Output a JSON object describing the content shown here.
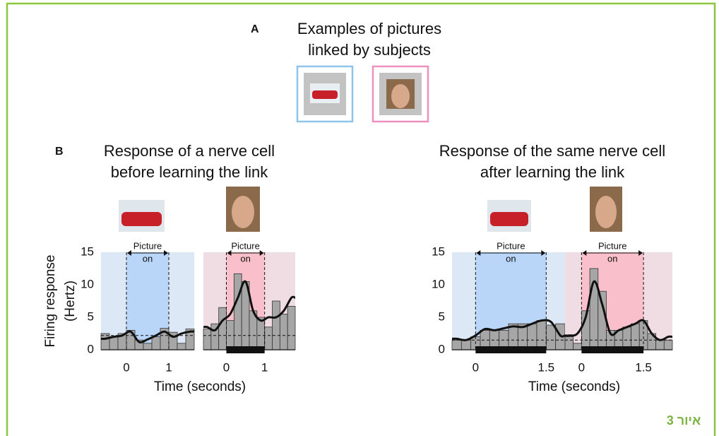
{
  "figure": {
    "label_a": "A",
    "title_a": [
      "Examples of pictures",
      "linked by subjects"
    ],
    "label_b": "B",
    "panels": [
      {
        "title": [
          "Response of a nerve cell",
          "before learning the link"
        ]
      },
      {
        "title": [
          "Response of the same nerve cell",
          "after learning the link"
        ]
      }
    ],
    "caption": "איור 3"
  },
  "chart_data": [
    {
      "type": "histogram",
      "bins": [
        -0.6,
        -0.4,
        -0.2,
        0,
        0.2,
        0.4,
        0.6,
        0.8,
        1,
        1.2,
        1.4,
        1.6
      ],
      "values": [
        2.5,
        2,
        2.5,
        3,
        1.5,
        1,
        2,
        3.3,
        2.7,
        1,
        3.2
      ],
      "curve": [
        1.7,
        2,
        2.2,
        2.8,
        1.2,
        1.6,
        2.2,
        2.8,
        2,
        2.5,
        2.8
      ],
      "baseline": 2.2,
      "stimulus": [
        0,
        1
      ],
      "response_bar": false,
      "xlim": [
        -0.6,
        1.6
      ],
      "ylim": [
        0,
        15
      ],
      "xticks": [
        0,
        1
      ],
      "yticks": [
        0,
        5,
        10,
        15
      ],
      "color": "#a6a6a6",
      "shade_color": "#dce8f6",
      "stim_color": "#b9d5f7",
      "annotation": [
        "Picture",
        "on"
      ],
      "ylabel": [
        "Firing response",
        "(Hertz)"
      ],
      "xlabel": "Time (seconds)"
    },
    {
      "type": "histogram",
      "bins": [
        -0.6,
        -0.4,
        -0.2,
        0,
        0.2,
        0.4,
        0.6,
        0.8,
        1,
        1.2,
        1.4,
        1.6,
        1.8
      ],
      "values": [
        3.2,
        4,
        6.5,
        4.5,
        11.7,
        10.5,
        6,
        5,
        3.5,
        7.5,
        5.5,
        6.7
      ],
      "curve": [
        3.5,
        3,
        4.5,
        5.5,
        8,
        10.5,
        6,
        4.5,
        5,
        5,
        6,
        8
      ],
      "baseline": 2.2,
      "stimulus": [
        0,
        1
      ],
      "response_bar": true,
      "xlim": [
        -0.6,
        1.8
      ],
      "ylim": [
        0,
        15
      ],
      "xticks": [
        0,
        1
      ],
      "color": "#a6a6a6",
      "shade_color": "#f0dde3",
      "stim_color": "#f9c0cc",
      "annotation": [
        "Picture",
        "on"
      ]
    },
    {
      "type": "histogram",
      "bins": [
        -0.5,
        -0.3,
        -0.1,
        0.1,
        0.3,
        0.5,
        0.7,
        0.9,
        1.1,
        1.3,
        1.5,
        1.7,
        1.9
      ],
      "values": [
        1.5,
        1.5,
        2,
        3,
        3,
        3,
        4,
        4,
        4,
        4.5,
        3.8,
        4
      ],
      "curve": [
        1.7,
        1.5,
        2.2,
        3.2,
        3,
        3.3,
        3.6,
        3.5,
        4,
        4.5,
        4.3,
        2.2
      ],
      "baseline": 1.5,
      "stimulus": [
        0,
        1.5
      ],
      "response_bar": true,
      "xlim": [
        -0.5,
        1.9
      ],
      "ylim": [
        0,
        15
      ],
      "xticks": [
        0,
        1.5
      ],
      "yticks": [
        0,
        5,
        10,
        15
      ],
      "color": "#a6a6a6",
      "shade_color": "#dce8f6",
      "stim_color": "#b9d5f7",
      "annotation": [
        "Picture",
        "on"
      ],
      "xlabel": "Time (seconds)"
    },
    {
      "type": "histogram",
      "bins": [
        -0.4,
        -0.2,
        0,
        0.2,
        0.4,
        0.6,
        0.8,
        1,
        1.2,
        1.4,
        1.6,
        1.8,
        2,
        2.2
      ],
      "values": [
        2,
        1,
        6,
        12.5,
        9,
        3,
        3,
        3.5,
        4,
        4.5,
        2.5,
        1.5,
        1.5
      ],
      "curve": [
        2.2,
        2.5,
        5,
        10.5,
        7,
        2.5,
        3,
        3.5,
        4,
        4.5,
        2.5,
        1.5,
        2
      ],
      "baseline": 1.5,
      "stimulus": [
        0,
        1.5
      ],
      "response_bar": true,
      "xlim": [
        -0.4,
        2.2
      ],
      "ylim": [
        0,
        15
      ],
      "xticks": [
        0,
        1.5
      ],
      "color": "#a6a6a6",
      "shade_color": "#f0dde3",
      "stim_color": "#f9c0cc",
      "annotation": [
        "Picture",
        "on"
      ]
    }
  ]
}
